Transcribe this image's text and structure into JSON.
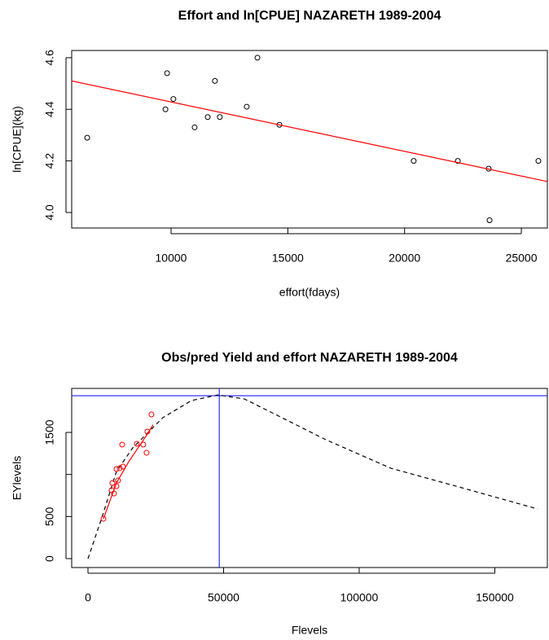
{
  "chart_data": [
    {
      "type": "scatter",
      "title": "Effort and ln[CPUE] NAZARETH 1989-2004",
      "x_label": "effort(fdays)",
      "y_label": "ln[CPUE](kg)",
      "xlim": [
        5745,
        26114
      ],
      "ylim": [
        3.94,
        4.628
      ],
      "xticks": [
        10000,
        15000,
        20000,
        25000
      ],
      "yticks": [
        {
          "value": 4,
          "label": "4.0"
        },
        4.2,
        4.4,
        4.6
      ],
      "series": [
        {
          "style": "points",
          "color": "#000000",
          "x": [
            6410,
            9760,
            9830,
            10100,
            11010,
            11570,
            11880,
            12090,
            13240,
            13700,
            14640,
            20390,
            22280,
            23600,
            23640,
            25730
          ],
          "values": [
            4.29,
            4.4,
            4.54,
            4.44,
            4.33,
            4.37,
            4.51,
            4.37,
            4.41,
            4.6,
            4.34,
            4.2,
            4.2,
            4.17,
            3.97,
            4.2
          ]
        },
        {
          "style": "line",
          "color": "#ff0000",
          "x": [
            5745,
            26114
          ],
          "values": [
            4.51,
            4.12
          ]
        }
      ]
    },
    {
      "type": "scatter",
      "title": "Obs/pred Yield and effort NAZARETH 1989-2004",
      "x_label": "Flevels",
      "y_label": "EYlevels",
      "xlim": [
        -6006,
        169370
      ],
      "ylim": [
        -106,
        2023
      ],
      "xticks": [
        0,
        50000,
        100000,
        150000
      ],
      "yticks": [
        0,
        500,
        {
          "value": 1000,
          "label": null
        },
        1500
      ],
      "hline": 1936,
      "vline": 48400,
      "ref_color": "#0000ff",
      "series": [
        {
          "style": "dashed",
          "color": "#000000",
          "x": [
            0,
            5100,
            10500,
            16500,
            27600,
            38100,
            48000,
            57700,
            69700,
            87700,
            111700,
            135700,
            165800
          ],
          "values": [
            0,
            484,
            1036,
            1316,
            1675,
            1878,
            1946,
            1897,
            1704,
            1413,
            1074,
            861,
            590
          ]
        },
        {
          "style": "line",
          "color": "#ff0000",
          "x": [
            5700,
            10500,
            15000,
            21900,
            24000
          ],
          "values": [
            474,
            900,
            1150,
            1480,
            1590
          ]
        },
        {
          "style": "points",
          "color": "#ff0000",
          "x": [
            5700,
            8700,
            9000,
            9600,
            10500,
            10500,
            11100,
            12600,
            11700,
            12900,
            18000,
            20400,
            21900,
            21600,
            23400
          ],
          "values": [
            474,
            813,
            900,
            774,
            862,
            1065,
            929,
            1355,
            1075,
            1094,
            1365,
            1355,
            1510,
            1258,
            1713
          ]
        }
      ]
    }
  ]
}
